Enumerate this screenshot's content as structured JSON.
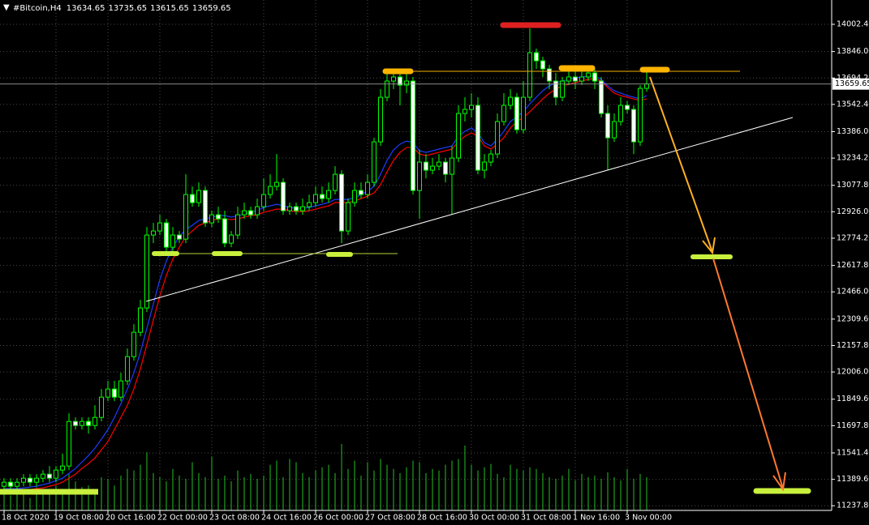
{
  "chart_data": {
    "type": "candlestick",
    "title": "#Bitcoin,H4",
    "categories": [
      "18 Oct 2020",
      null,
      null,
      null,
      null,
      null,
      null,
      null,
      "19 Oct 08:00",
      null,
      null,
      null,
      null,
      null,
      null,
      null,
      "20 Oct 16:00",
      null,
      null,
      null,
      null,
      null,
      null,
      null,
      "22 Oct 00:00",
      null,
      null,
      null,
      null,
      null,
      null,
      null,
      "23 Oct 08:00",
      null,
      null,
      null,
      null,
      null,
      null,
      null,
      "24 Oct 16:00",
      null,
      null,
      null,
      null,
      null,
      null,
      null,
      "26 Oct 00:00",
      null,
      null,
      null,
      null,
      null,
      null,
      null,
      "27 Oct 08:00",
      null,
      null,
      null,
      null,
      null,
      null,
      null,
      "28 Oct 16:00",
      null,
      null,
      null,
      null,
      null,
      null,
      null,
      "30 Oct 00:00",
      null,
      null,
      null,
      null,
      null,
      null,
      null,
      "31 Oct 08:00",
      null,
      null,
      null,
      null,
      null,
      null,
      null,
      "1 Nov 16:00",
      null,
      null,
      null,
      null,
      null,
      null,
      null,
      "3 Nov 00:00",
      null,
      null,
      null
    ],
    "open": [
      11349.6,
      11372.9,
      11349.6,
      11372.9,
      11396.1,
      11372.9,
      11396.1,
      11419.4,
      11396.1,
      11442.7,
      11465.9,
      11721.9,
      11698.7,
      11721.9,
      11698.7,
      11745.2,
      11861.5,
      11908.1,
      11861.5,
      11954.6,
      12094.2,
      12233.9,
      12373.5,
      12792.4,
      12815.6,
      12862.2,
      12722.5,
      12792.4,
      12769.1,
      13025.0,
      12978.5,
      13048.3,
      12862.2,
      12908.7,
      12885.4,
      12745.8,
      12792.4,
      12908.7,
      12932.0,
      12908.7,
      12955.2,
      13025.0,
      13071.6,
      13094.9,
      12932.0,
      12955.2,
      12932.0,
      12955.2,
      12978.5,
      13025.0,
      13001.8,
      13048.3,
      13141.4,
      12815.6,
      12978.5,
      13048.3,
      13025.0,
      13094.9,
      13327.5,
      13583.5,
      13676.6,
      13699.9,
      13653.3,
      13676.6,
      13048.3,
      13211.2,
      13164.7,
      13187.9,
      13211.2,
      13141.4,
      13234.5,
      13490.4,
      13513.7,
      13537.0,
      13164.7,
      13211.2,
      13257.7,
      13443.9,
      13537.0,
      13583.5,
      13397.4,
      13583.5,
      13839.5,
      13792.9,
      13746.4,
      13676.6,
      13583.5,
      13676.6,
      13699.9,
      13676.6,
      13699.9,
      13723.1,
      13676.6,
      13490.4,
      13350.8,
      13443.9,
      13537.0,
      13513.7,
      13327.5,
      13634.65
    ],
    "high": [
      11396.1,
      11396.1,
      11396.1,
      11419.4,
      11419.4,
      11419.4,
      11442.7,
      11465.9,
      11465.9,
      11535.8,
      11768.5,
      11745.2,
      11745.2,
      11745.2,
      11815.0,
      11908.1,
      11954.6,
      11954.6,
      12001.2,
      12140.8,
      12280.4,
      12420.0,
      12838.9,
      12862.2,
      12908.7,
      12885.4,
      12838.9,
      12815.6,
      13141.4,
      13071.6,
      13094.9,
      13071.6,
      12932.0,
      12955.2,
      12932.0,
      12815.6,
      12955.2,
      12978.5,
      12955.2,
      13001.8,
      13118.1,
      13141.4,
      13257.7,
      13118.1,
      12978.5,
      12978.5,
      13001.8,
      13025.0,
      13071.6,
      13071.6,
      13094.9,
      13187.9,
      13164.7,
      13001.8,
      13094.9,
      13094.9,
      13141.4,
      13350.8,
      13630.1,
      13723.1,
      13746.4,
      13746.4,
      13746.4,
      13699.9,
      13281.0,
      13257.7,
      13234.5,
      13257.7,
      13234.5,
      13304.3,
      13537.0,
      13583.5,
      13606.8,
      13583.5,
      13257.7,
      13281.0,
      13490.4,
      13606.8,
      13630.1,
      13606.8,
      13676.6,
      13979.1,
      13862.8,
      13816.2,
      13769.7,
      13723.1,
      13699.9,
      13746.4,
      13746.4,
      13746.4,
      13746.4,
      13746.4,
      13699.9,
      13537.0,
      13490.4,
      13583.5,
      13560.3,
      13537.0,
      13653.3,
      13735.65
    ],
    "low": [
      11326.3,
      11326.3,
      11326.3,
      11349.6,
      11349.6,
      11349.6,
      11372.9,
      11372.9,
      11372.9,
      11419.4,
      11442.7,
      11675.4,
      11675.4,
      11652.1,
      11675.4,
      11721.9,
      11838.3,
      11838.3,
      11838.3,
      11931.4,
      12071.0,
      12210.6,
      12350.2,
      12745.8,
      12792.4,
      12699.3,
      12699.3,
      12745.8,
      12745.8,
      12955.2,
      12955.2,
      12838.9,
      12838.9,
      12862.2,
      12722.5,
      12722.5,
      12769.1,
      12885.4,
      12885.4,
      12885.4,
      12932.0,
      13001.8,
      13048.3,
      12908.7,
      12908.7,
      12908.7,
      12908.7,
      12932.0,
      12955.2,
      12978.5,
      12978.5,
      13025.0,
      12745.8,
      12792.4,
      12955.2,
      13001.8,
      13001.8,
      13071.6,
      13304.3,
      13560.3,
      13630.1,
      13537.0,
      13606.8,
      13025.0,
      12885.4,
      13118.1,
      13141.4,
      13164.7,
      13094.9,
      12908.7,
      13211.2,
      13443.9,
      13467.2,
      13141.4,
      13118.1,
      13187.9,
      13234.5,
      13420.6,
      13513.7,
      13374.1,
      13374.1,
      13560.3,
      13746.4,
      13699.9,
      13630.1,
      13537.0,
      13560.3,
      13653.3,
      13630.1,
      13653.3,
      13676.6,
      13630.1,
      13467.2,
      13164.7,
      13327.5,
      13420.6,
      13490.4,
      13257.7,
      13304.3,
      13615.65
    ],
    "close": [
      11372.9,
      11349.6,
      11372.9,
      11396.1,
      11372.9,
      11396.1,
      11419.4,
      11396.1,
      11442.7,
      11465.9,
      11721.9,
      11698.7,
      11721.9,
      11698.7,
      11745.2,
      11861.5,
      11908.1,
      11861.5,
      11954.6,
      12094.2,
      12233.9,
      12373.5,
      12792.4,
      12815.6,
      12862.2,
      12722.5,
      12792.4,
      12769.1,
      13025.0,
      12978.5,
      13048.3,
      12862.2,
      12908.7,
      12885.4,
      12745.8,
      12792.4,
      12908.7,
      12932.0,
      12908.7,
      12955.2,
      13025.0,
      13071.6,
      13094.9,
      12932.0,
      12955.2,
      12932.0,
      12955.2,
      12978.5,
      13025.0,
      13001.8,
      13048.3,
      13141.4,
      12815.6,
      12978.5,
      13048.3,
      13025.0,
      13094.9,
      13327.5,
      13583.5,
      13676.6,
      13699.9,
      13653.3,
      13676.6,
      13048.3,
      13211.2,
      13164.7,
      13187.9,
      13211.2,
      13141.4,
      13234.5,
      13490.4,
      13513.7,
      13537.0,
      13164.7,
      13211.2,
      13257.7,
      13443.9,
      13537.0,
      13583.5,
      13397.4,
      13583.5,
      13839.5,
      13792.9,
      13746.4,
      13676.6,
      13583.5,
      13676.6,
      13699.9,
      13676.6,
      13699.9,
      13723.1,
      13676.6,
      13490.4,
      13350.8,
      13443.9,
      13537.0,
      13513.7,
      13327.5,
      13634.65,
      13659.65
    ],
    "volume": [
      22,
      18,
      25,
      20,
      15,
      28,
      20,
      24,
      30,
      26,
      45,
      35,
      28,
      30,
      25,
      40,
      38,
      30,
      42,
      50,
      48,
      55,
      70,
      45,
      40,
      35,
      50,
      42,
      38,
      58,
      45,
      40,
      65,
      38,
      42,
      35,
      48,
      40,
      44,
      38,
      42,
      55,
      60,
      40,
      62,
      58,
      45,
      40,
      48,
      52,
      55,
      45,
      80,
      50,
      60,
      42,
      58,
      48,
      62,
      55,
      50,
      45,
      52,
      60,
      58,
      45,
      50,
      48,
      55,
      60,
      62,
      78,
      55,
      48,
      52,
      56,
      44,
      40,
      55,
      50,
      48,
      52,
      50,
      45,
      40,
      38,
      42,
      50,
      36,
      44,
      40,
      42,
      38,
      46,
      40,
      36,
      50,
      38,
      44,
      40
    ],
    "moving_averages": [
      {
        "color": "#ff0000",
        "values": [
          11326,
          11326,
          11326,
          11326,
          11331,
          11336,
          11340,
          11350,
          11359,
          11373,
          11396,
          11419,
          11452,
          11480,
          11512,
          11559,
          11606,
          11675,
          11745,
          11815,
          11908,
          12024,
          12164,
          12304,
          12443,
          12560,
          12653,
          12723,
          12783,
          12816,
          12848,
          12862,
          12876,
          12885,
          12885,
          12881,
          12885,
          12895,
          12904,
          12909,
          12923,
          12932,
          12941,
          12941,
          12932,
          12927,
          12927,
          12932,
          12941,
          12951,
          12960,
          12979,
          12979,
          12979,
          12988,
          13002,
          13016,
          13034,
          13081,
          13155,
          13221,
          13267,
          13295,
          13295,
          13258,
          13248,
          13258,
          13267,
          13276,
          13286,
          13328,
          13360,
          13379,
          13360,
          13304,
          13286,
          13314,
          13351,
          13407,
          13444,
          13467,
          13500,
          13537,
          13574,
          13607,
          13630,
          13649,
          13658,
          13667,
          13677,
          13686,
          13691,
          13677,
          13639,
          13607,
          13593,
          13584,
          13574,
          13565,
          13574
        ]
      },
      {
        "color": "#1e3cff",
        "values": [
          11336,
          11336,
          11336,
          11340,
          11345,
          11350,
          11359,
          11368,
          11382,
          11396,
          11424,
          11452,
          11489,
          11526,
          11568,
          11620,
          11675,
          11745,
          11824,
          11908,
          12001,
          12118,
          12257,
          12397,
          12536,
          12643,
          12723,
          12783,
          12825,
          12848,
          12876,
          12885,
          12895,
          12904,
          12904,
          12895,
          12904,
          12913,
          12923,
          12932,
          12951,
          12960,
          12969,
          12960,
          12951,
          12946,
          12946,
          12951,
          12960,
          12969,
          12979,
          12997,
          12997,
          12997,
          13006,
          13025,
          13044,
          13072,
          13141,
          13221,
          13281,
          13314,
          13332,
          13323,
          13276,
          13267,
          13276,
          13286,
          13295,
          13304,
          13360,
          13388,
          13407,
          13379,
          13323,
          13304,
          13342,
          13388,
          13444,
          13472,
          13500,
          13546,
          13584,
          13621,
          13649,
          13667,
          13677,
          13686,
          13695,
          13700,
          13705,
          13705,
          13686,
          13649,
          13621,
          13607,
          13593,
          13584,
          13574,
          13593
        ]
      }
    ],
    "ylim": [
      11211,
      14142
    ],
    "yticks": [
      {
        "value": 14002.4,
        "label": "14002.40"
      },
      {
        "value": 13846,
        "label": "13846.00"
      },
      {
        "value": 13694.2,
        "label": "13694.20"
      },
      {
        "value": 13542.4,
        "label": "13542.40"
      },
      {
        "value": 13386,
        "label": "13386.00"
      },
      {
        "value": 13234.2,
        "label": "13234.20"
      },
      {
        "value": 13077.8,
        "label": "13077.80"
      },
      {
        "value": 12926,
        "label": "12926.00"
      },
      {
        "value": 12774.2,
        "label": "12774.20"
      },
      {
        "value": 12617.8,
        "label": "12617.80"
      },
      {
        "value": 12466,
        "label": "12466.00"
      },
      {
        "value": 12309.6,
        "label": "12309.60"
      },
      {
        "value": 12157.8,
        "label": "12157.80"
      },
      {
        "value": 12006,
        "label": "12006.00"
      },
      {
        "value": 11849.6,
        "label": "11849.60"
      },
      {
        "value": 11697.8,
        "label": "11697.80"
      },
      {
        "value": 11541.4,
        "label": "11541.40"
      },
      {
        "value": 11389.6,
        "label": "11389.60"
      },
      {
        "value": 11237.8,
        "label": "11237.80"
      }
    ],
    "grid": true,
    "up_color": "#000000",
    "down_color": "#ffffff",
    "wick_color": "#00ff00",
    "volume_color": "#22c022"
  }
}
